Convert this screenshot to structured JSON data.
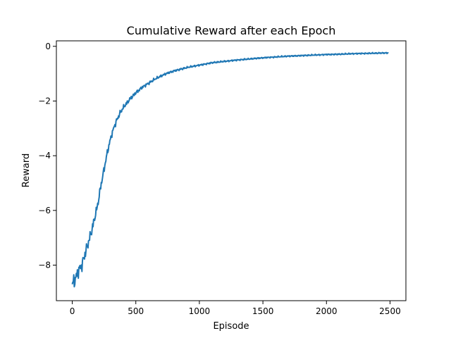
{
  "chart_data": {
    "type": "line",
    "title": "Cumulative Reward after each Epoch",
    "xlabel": "Episode",
    "ylabel": "Reward",
    "xlim": [
      -125,
      2625
    ],
    "ylim": [
      -9.3,
      0.2
    ],
    "xticks": [
      0,
      500,
      1000,
      1500,
      2000,
      2500
    ],
    "xtick_labels": [
      "0",
      "500",
      "1000",
      "1500",
      "2000",
      "2500"
    ],
    "yticks": [
      -8,
      -6,
      -4,
      -2,
      0
    ],
    "ytick_labels": [
      "−8",
      "−6",
      "−4",
      "−2",
      "0"
    ],
    "grid": false,
    "legend": "none",
    "series": [
      {
        "color": "#1f77b4",
        "x": [
          0,
          25,
          50,
          75,
          100,
          125,
          150,
          175,
          200,
          225,
          250,
          275,
          300,
          325,
          350,
          375,
          400,
          450,
          500,
          550,
          600,
          650,
          700,
          750,
          800,
          850,
          900,
          950,
          1000,
          1100,
          1200,
          1300,
          1400,
          1500,
          1600,
          1700,
          1800,
          1900,
          2000,
          2100,
          2200,
          2300,
          2400,
          2490
        ],
        "y": [
          -8.7,
          -8.5,
          -8.2,
          -8.0,
          -7.6,
          -7.2,
          -6.8,
          -6.3,
          -5.8,
          -5.1,
          -4.5,
          -3.9,
          -3.4,
          -3.0,
          -2.7,
          -2.45,
          -2.25,
          -1.95,
          -1.7,
          -1.5,
          -1.35,
          -1.2,
          -1.08,
          -0.98,
          -0.9,
          -0.84,
          -0.78,
          -0.73,
          -0.69,
          -0.6,
          -0.55,
          -0.5,
          -0.46,
          -0.42,
          -0.39,
          -0.36,
          -0.34,
          -0.32,
          -0.3,
          -0.29,
          -0.27,
          -0.26,
          -0.25,
          -0.24
        ]
      }
    ]
  }
}
